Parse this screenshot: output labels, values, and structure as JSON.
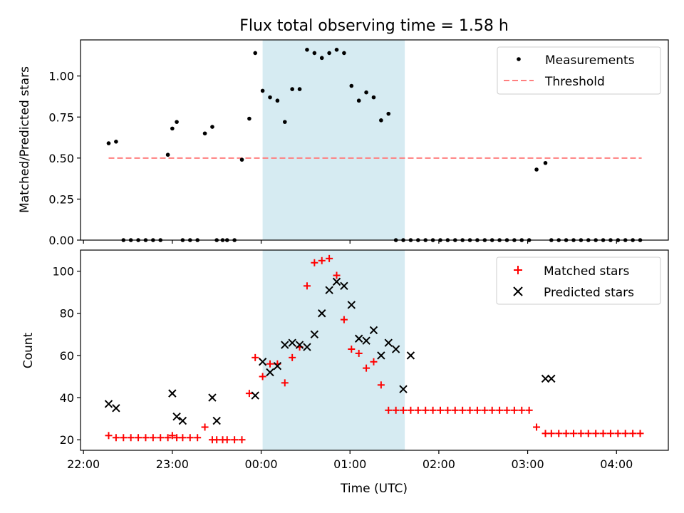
{
  "chart_data": [
    {
      "type": "scatter",
      "title": "Flux total observing time = 1.58 h",
      "ylabel": "Matched/Predicted stars",
      "xlabel": "",
      "xlim": [
        "21:58",
        "04:35"
      ],
      "ylim": [
        0,
        1.22
      ],
      "yticks": [
        0.0,
        0.25,
        0.5,
        0.75,
        1.0
      ],
      "ytick_labels": [
        "0.00",
        "0.25",
        "0.50",
        "0.75",
        "1.00"
      ],
      "grid": false,
      "legend_position": "top-right",
      "shaded_interval": {
        "start": "00:01",
        "end": "01:37",
        "color": "#add8e6"
      },
      "series": [
        {
          "name": "Measurements",
          "kind": "scatter",
          "marker": "dot",
          "color": "#000000",
          "x": [
            "22:17",
            "22:22",
            "22:27",
            "22:32",
            "22:37",
            "22:42",
            "22:47",
            "22:52",
            "22:57",
            "23:00",
            "23:03",
            "23:07",
            "23:12",
            "23:17",
            "23:22",
            "23:27",
            "23:30",
            "23:34",
            "23:37",
            "23:42",
            "23:47",
            "23:52",
            "23:56",
            "00:01",
            "00:06",
            "00:11",
            "00:16",
            "00:21",
            "00:26",
            "00:31",
            "00:36",
            "00:41",
            "00:46",
            "00:51",
            "00:56",
            "01:01",
            "01:06",
            "01:11",
            "01:16",
            "01:21",
            "01:26",
            "01:31",
            "01:36",
            "01:41",
            "01:46",
            "01:51",
            "01:56",
            "02:01",
            "02:06",
            "02:11",
            "02:16",
            "02:21",
            "02:26",
            "02:31",
            "02:36",
            "02:41",
            "02:46",
            "02:51",
            "02:56",
            "03:01",
            "03:06",
            "03:12",
            "03:16",
            "03:21",
            "03:26",
            "03:31",
            "03:36",
            "03:41",
            "03:46",
            "03:51",
            "03:56",
            "04:01",
            "04:06",
            "04:11",
            "04:16"
          ],
          "y": [
            0.59,
            0.6,
            0.0,
            0.0,
            0.0,
            0.0,
            0.0,
            0.0,
            0.52,
            0.68,
            0.72,
            0.0,
            0.0,
            0.0,
            0.65,
            0.69,
            0.0,
            0.0,
            0.0,
            0.0,
            0.49,
            0.74,
            1.14,
            0.91,
            0.87,
            0.85,
            0.72,
            0.92,
            0.92,
            1.16,
            1.14,
            1.11,
            1.14,
            1.16,
            1.14,
            0.94,
            0.85,
            0.9,
            0.87,
            0.73,
            0.77,
            0.0,
            0.0,
            0.0,
            0.0,
            0.0,
            0.0,
            0.0,
            0.0,
            0.0,
            0.0,
            0.0,
            0.0,
            0.0,
            0.0,
            0.0,
            0.0,
            0.0,
            0.0,
            0.0,
            0.43,
            0.47,
            0.0,
            0.0,
            0.0,
            0.0,
            0.0,
            0.0,
            0.0,
            0.0,
            0.0,
            0.0,
            0.0,
            0.0,
            0.0
          ]
        },
        {
          "name": "Threshold",
          "kind": "line",
          "style": "dashed",
          "color": "#ff7f7f",
          "x": [
            "22:17",
            "04:17"
          ],
          "y": [
            0.5,
            0.5
          ]
        }
      ]
    },
    {
      "type": "scatter",
      "title": "",
      "xlabel": "Time (UTC)",
      "ylabel": "Count",
      "xlim": [
        "21:58",
        "04:35"
      ],
      "ylim": [
        15,
        110
      ],
      "xtick_labels": [
        "22:00",
        "23:00",
        "00:00",
        "01:00",
        "02:00",
        "03:00",
        "04:00"
      ],
      "yticks": [
        20,
        40,
        60,
        80,
        100
      ],
      "ytick_labels": [
        "20",
        "40",
        "60",
        "80",
        "100"
      ],
      "grid": false,
      "legend_position": "top-right",
      "shaded_interval": {
        "start": "00:01",
        "end": "01:37",
        "color": "#add8e6"
      },
      "series": [
        {
          "name": "Matched stars",
          "kind": "scatter",
          "marker": "plus",
          "color": "#ff0000",
          "x": [
            "22:17",
            "22:22",
            "22:27",
            "22:32",
            "22:37",
            "22:42",
            "22:47",
            "22:52",
            "22:57",
            "23:00",
            "23:03",
            "23:07",
            "23:12",
            "23:17",
            "23:22",
            "23:27",
            "23:30",
            "23:34",
            "23:37",
            "23:42",
            "23:47",
            "23:52",
            "23:56",
            "00:01",
            "00:06",
            "00:11",
            "00:16",
            "00:21",
            "00:26",
            "00:31",
            "00:36",
            "00:41",
            "00:46",
            "00:51",
            "00:56",
            "01:01",
            "01:06",
            "01:11",
            "01:16",
            "01:21",
            "01:26",
            "01:31",
            "01:36",
            "01:41",
            "01:46",
            "01:51",
            "01:56",
            "02:01",
            "02:06",
            "02:11",
            "02:16",
            "02:21",
            "02:26",
            "02:31",
            "02:36",
            "02:41",
            "02:46",
            "02:51",
            "02:56",
            "03:01",
            "03:06",
            "03:12",
            "03:16",
            "03:21",
            "03:26",
            "03:31",
            "03:36",
            "03:41",
            "03:46",
            "03:51",
            "03:56",
            "04:01",
            "04:06",
            "04:11",
            "04:16"
          ],
          "y": [
            22,
            21,
            21,
            21,
            21,
            21,
            21,
            21,
            21,
            22,
            21,
            21,
            21,
            21,
            26,
            20,
            20,
            20,
            20,
            20,
            20,
            42,
            59,
            50,
            56,
            56,
            47,
            59,
            64,
            93,
            104,
            105,
            106,
            98,
            77,
            63,
            61,
            54,
            57,
            46,
            34,
            34,
            34,
            34,
            34,
            34,
            34,
            34,
            34,
            34,
            34,
            34,
            34,
            34,
            34,
            34,
            34,
            34,
            34,
            34,
            26,
            23,
            23,
            23,
            23,
            23,
            23,
            23,
            23,
            23,
            23,
            23,
            23,
            23,
            23
          ]
        },
        {
          "name": "Predicted stars",
          "kind": "scatter",
          "marker": "x",
          "color": "#000000",
          "x": [
            "22:17",
            "22:22",
            "23:00",
            "23:03",
            "23:07",
            "23:27",
            "23:30",
            "23:56",
            "00:01",
            "00:06",
            "00:11",
            "00:16",
            "00:21",
            "00:26",
            "00:31",
            "00:36",
            "00:41",
            "00:46",
            "00:51",
            "00:56",
            "01:01",
            "01:06",
            "01:11",
            "01:16",
            "01:21",
            "01:26",
            "01:31",
            "01:36",
            "01:41",
            "03:12",
            "03:16"
          ],
          "y": [
            37,
            35,
            42,
            31,
            29,
            40,
            29,
            41,
            57,
            52,
            55,
            65,
            66,
            65,
            64,
            70,
            80,
            91,
            95,
            93,
            84,
            68,
            67,
            72,
            60,
            66,
            63,
            44,
            60,
            49,
            49
          ]
        }
      ]
    }
  ]
}
